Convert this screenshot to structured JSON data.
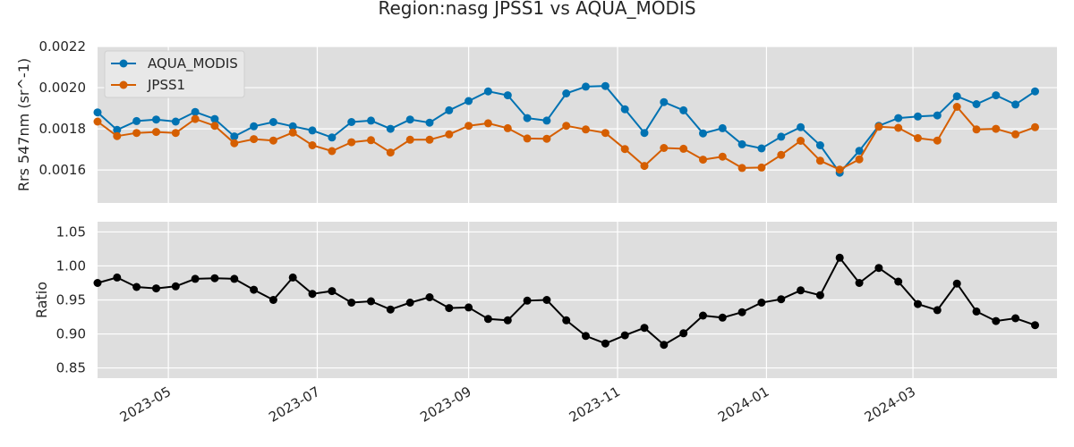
{
  "chart_data": [
    {
      "type": "line",
      "title": "Region:nasg JPSS1 vs AQUA_MODIS",
      "ylabel": "Rrs 547nm (sr^-1)",
      "ylim": [
        0.00144,
        0.0022
      ],
      "yticks": [
        0.0016,
        0.0018,
        0.002,
        0.0022
      ],
      "ytick_labels": [
        "0.0016",
        "0.0018",
        "0.0020",
        "0.0022"
      ],
      "grid": true,
      "legend": "top-left",
      "series": [
        {
          "name": "AQUA_MODIS",
          "color": "#0072b2",
          "values": [
            0.00188,
            0.001795,
            0.001838,
            0.001845,
            0.001835,
            0.001882,
            0.001848,
            0.001763,
            0.001812,
            0.001833,
            0.001812,
            0.001792,
            0.001758,
            0.001833,
            0.00184,
            0.0018,
            0.001845,
            0.00183,
            0.00189,
            0.001935,
            0.001982,
            0.001963,
            0.001852,
            0.00184,
            0.001972,
            0.002005,
            0.002008,
            0.001895,
            0.00178,
            0.00193,
            0.00189,
            0.001778,
            0.001803,
            0.001725,
            0.001705,
            0.001762,
            0.001808,
            0.00172,
            0.001587,
            0.001693,
            0.001815,
            0.001852,
            0.00186,
            0.001865,
            0.001958,
            0.00192,
            0.001963,
            0.001918,
            0.001982
          ]
        },
        {
          "name": "JPSS1",
          "color": "#d55e00",
          "values": [
            0.001835,
            0.001765,
            0.00178,
            0.001785,
            0.00178,
            0.001848,
            0.001815,
            0.00173,
            0.00175,
            0.001743,
            0.001782,
            0.00172,
            0.001692,
            0.001735,
            0.001745,
            0.001685,
            0.001747,
            0.001747,
            0.001773,
            0.001815,
            0.001827,
            0.001803,
            0.001753,
            0.001752,
            0.001815,
            0.001797,
            0.00178,
            0.001702,
            0.00162,
            0.001707,
            0.001703,
            0.00165,
            0.001665,
            0.00161,
            0.001612,
            0.001673,
            0.001742,
            0.001645,
            0.001602,
            0.001652,
            0.00181,
            0.001805,
            0.001755,
            0.001743,
            0.001907,
            0.001797,
            0.0018,
            0.001773,
            0.001808
          ]
        }
      ]
    },
    {
      "type": "line",
      "ylabel": "Ratio",
      "ylim": [
        0.835,
        1.065
      ],
      "yticks": [
        0.85,
        0.9,
        0.95,
        1.0,
        1.05
      ],
      "ytick_labels": [
        "0.85",
        "0.90",
        "0.95",
        "1.00",
        "1.05"
      ],
      "xlim": [
        "2023-04-02",
        "2024-04-29"
      ],
      "x_start": "2023-04-02",
      "x_step_days": 8,
      "xticks": [
        "2023-05-01",
        "2023-07-01",
        "2023-09-01",
        "2023-11-01",
        "2024-01-01",
        "2024-03-01"
      ],
      "xtick_labels": [
        "2023-05",
        "2023-07",
        "2023-09",
        "2023-11",
        "2024-01",
        "2024-03"
      ],
      "grid": true,
      "series": [
        {
          "color": "#000000",
          "values": [
            0.975,
            0.983,
            0.969,
            0.967,
            0.97,
            0.981,
            0.982,
            0.981,
            0.965,
            0.95,
            0.983,
            0.959,
            0.963,
            0.946,
            0.948,
            0.936,
            0.946,
            0.954,
            0.938,
            0.939,
            0.922,
            0.92,
            0.949,
            0.95,
            0.92,
            0.897,
            0.886,
            0.898,
            0.909,
            0.884,
            0.901,
            0.927,
            0.924,
            0.932,
            0.946,
            0.951,
            0.964,
            0.957,
            1.012,
            0.975,
            0.997,
            0.977,
            0.944,
            0.935,
            0.974,
            0.933,
            0.919,
            0.923,
            0.913
          ]
        }
      ]
    }
  ]
}
